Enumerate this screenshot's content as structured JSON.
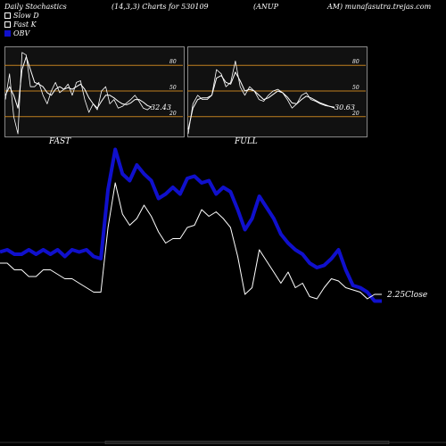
{
  "header": {
    "title": "Daily Stochastics",
    "params": "(14,3,3) Charts for 530109",
    "symbol_part1": "(ANUP",
    "symbol_part2": "AM) munafasutra.trejas.com"
  },
  "legend": [
    {
      "label": "Slow  D",
      "color": "#ffffff"
    },
    {
      "label": "Fast K",
      "color": "#ffffff"
    },
    {
      "label": "OBV",
      "color": "#1010cc"
    }
  ],
  "colors": {
    "obv": "#1010cc",
    "price": "#ffffff",
    "ref_line": "#c08020",
    "panel_bg": "#111111"
  },
  "chart_data": [
    {
      "type": "line",
      "name": "FAST",
      "title": "FAST",
      "ylim": [
        0,
        100
      ],
      "ref_levels": [
        80,
        50,
        20
      ],
      "ref_labels": [
        "80",
        "50",
        "20"
      ],
      "last_value_label": "32.43",
      "series": [
        {
          "name": "Fast K",
          "values": [
            40,
            70,
            20,
            0,
            95,
            92,
            55,
            55,
            60,
            45,
            35,
            50,
            60,
            48,
            52,
            58,
            45,
            60,
            62,
            40,
            25,
            35,
            28,
            50,
            55,
            35,
            40,
            30,
            32,
            36,
            40,
            45,
            38,
            30,
            28,
            32
          ]
        },
        {
          "name": "Slow  D",
          "values": [
            45,
            55,
            45,
            30,
            75,
            90,
            75,
            60,
            58,
            55,
            48,
            45,
            52,
            55,
            52,
            54,
            52,
            55,
            58,
            52,
            42,
            35,
            30,
            38,
            45,
            45,
            42,
            38,
            35,
            34,
            36,
            40,
            40,
            37,
            33,
            31
          ]
        }
      ]
    },
    {
      "type": "line",
      "name": "FULL",
      "title": "FULL",
      "ylim": [
        0,
        100
      ],
      "ref_levels": [
        80,
        50,
        20
      ],
      "ref_labels": [
        "80",
        "50",
        "20"
      ],
      "last_value_label": "30.63",
      "series": [
        {
          "name": "Fast K",
          "values": [
            0,
            35,
            45,
            40,
            40,
            45,
            75,
            70,
            55,
            60,
            85,
            55,
            45,
            55,
            50,
            40,
            38,
            45,
            50,
            52,
            48,
            40,
            30,
            35,
            45,
            48,
            40,
            38,
            35,
            33,
            32,
            30
          ]
        },
        {
          "name": "Slow  D",
          "values": [
            5,
            30,
            40,
            42,
            42,
            45,
            65,
            68,
            60,
            58,
            72,
            62,
            50,
            52,
            50,
            45,
            40,
            42,
            46,
            50,
            48,
            43,
            36,
            35,
            40,
            44,
            42,
            39,
            36,
            34,
            32,
            31
          ]
        }
      ]
    },
    {
      "type": "line",
      "name": "price-obv",
      "title": "",
      "last_value_label": "2.25Close",
      "ylim": [
        0,
        100
      ],
      "series": [
        {
          "name": "Close",
          "values": [
            42,
            42,
            39,
            39,
            36,
            36,
            39,
            39,
            37,
            35,
            35,
            33,
            31,
            29,
            29,
            58,
            78,
            64,
            59,
            62,
            68,
            63,
            56,
            51,
            53,
            53,
            58,
            59,
            66,
            63,
            65,
            62,
            58,
            45,
            28,
            31,
            48,
            43,
            38,
            33,
            38,
            31,
            33,
            27,
            26,
            31,
            35,
            34,
            31,
            30,
            29,
            26,
            28,
            28
          ]
        },
        {
          "name": "OBV",
          "values": [
            47,
            48,
            46,
            46,
            48,
            46,
            48,
            46,
            48,
            45,
            48,
            47,
            48,
            45,
            44,
            75,
            93,
            82,
            79,
            86,
            82,
            79,
            71,
            73,
            76,
            73,
            80,
            81,
            78,
            79,
            73,
            76,
            74,
            66,
            57,
            62,
            72,
            67,
            62,
            55,
            51,
            48,
            46,
            42,
            40,
            41,
            44,
            48,
            39,
            32,
            31,
            29,
            25,
            25
          ]
        }
      ]
    }
  ]
}
